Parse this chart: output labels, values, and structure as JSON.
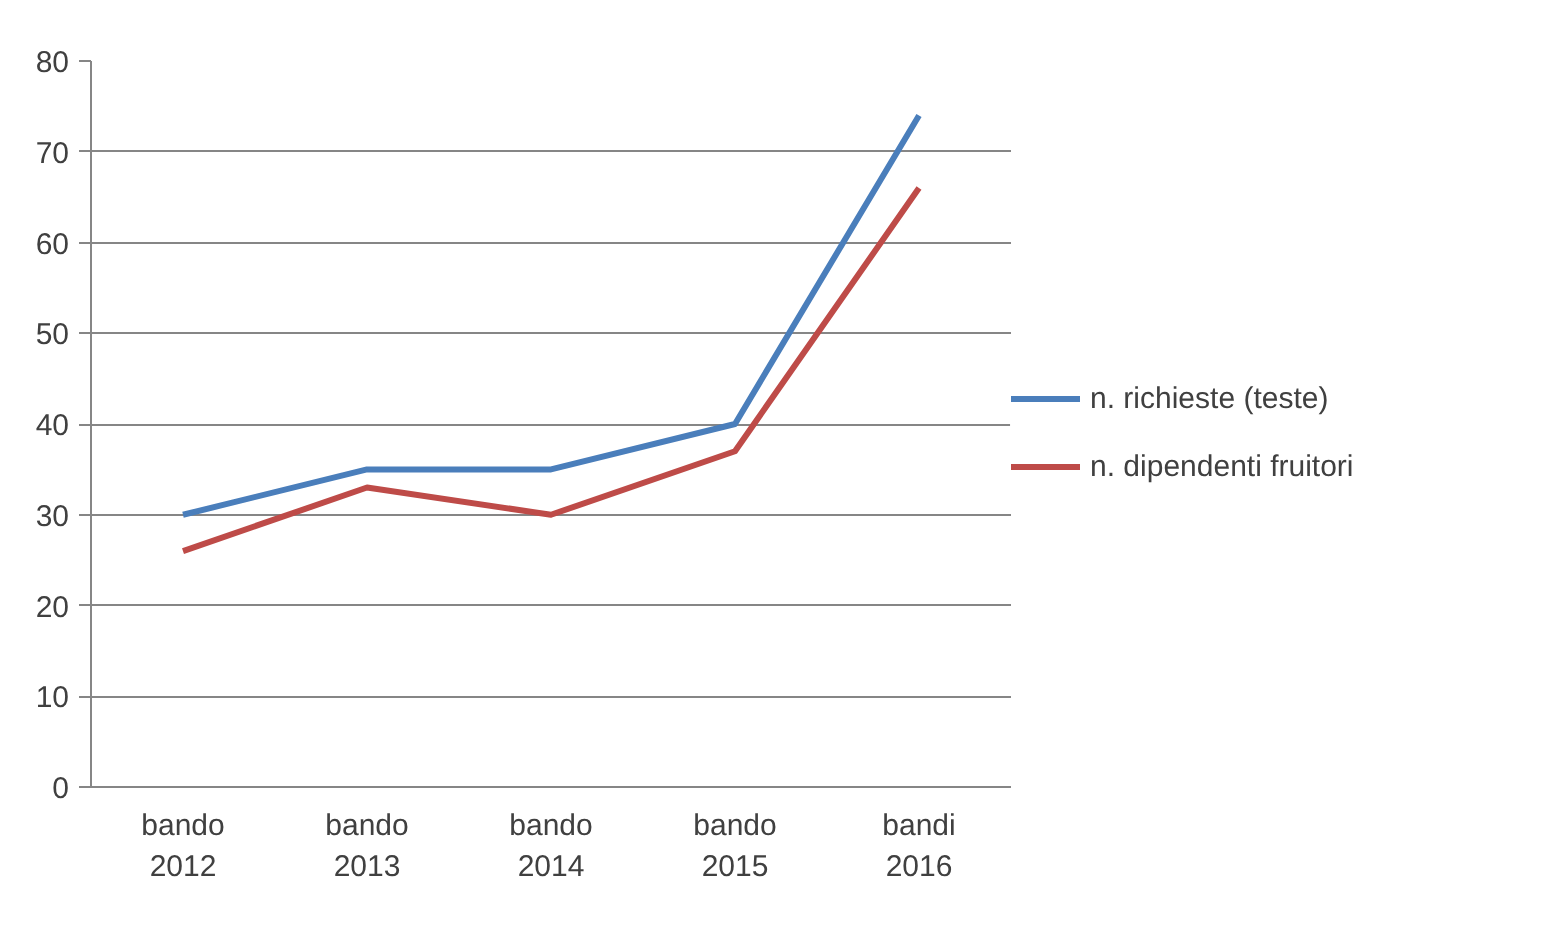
{
  "chart_data": {
    "type": "line",
    "categories": [
      "bando\n2012",
      "bando\n2013",
      "bando\n2014",
      "bando\n2015",
      "bandi\n2016"
    ],
    "series": [
      {
        "name": "n. richieste (teste)",
        "color": "#4a7ebb",
        "values": [
          30,
          35,
          35,
          40,
          74
        ]
      },
      {
        "name": "n. dipendenti fruitori",
        "color": "#be4b48",
        "values": [
          26,
          33,
          30,
          37,
          66
        ]
      }
    ],
    "ylim": [
      0,
      80
    ],
    "yticks": [
      0,
      10,
      20,
      30,
      40,
      50,
      60,
      70,
      80
    ],
    "grid": "y",
    "legend": "right",
    "marker": "none",
    "line_style": "solid"
  }
}
